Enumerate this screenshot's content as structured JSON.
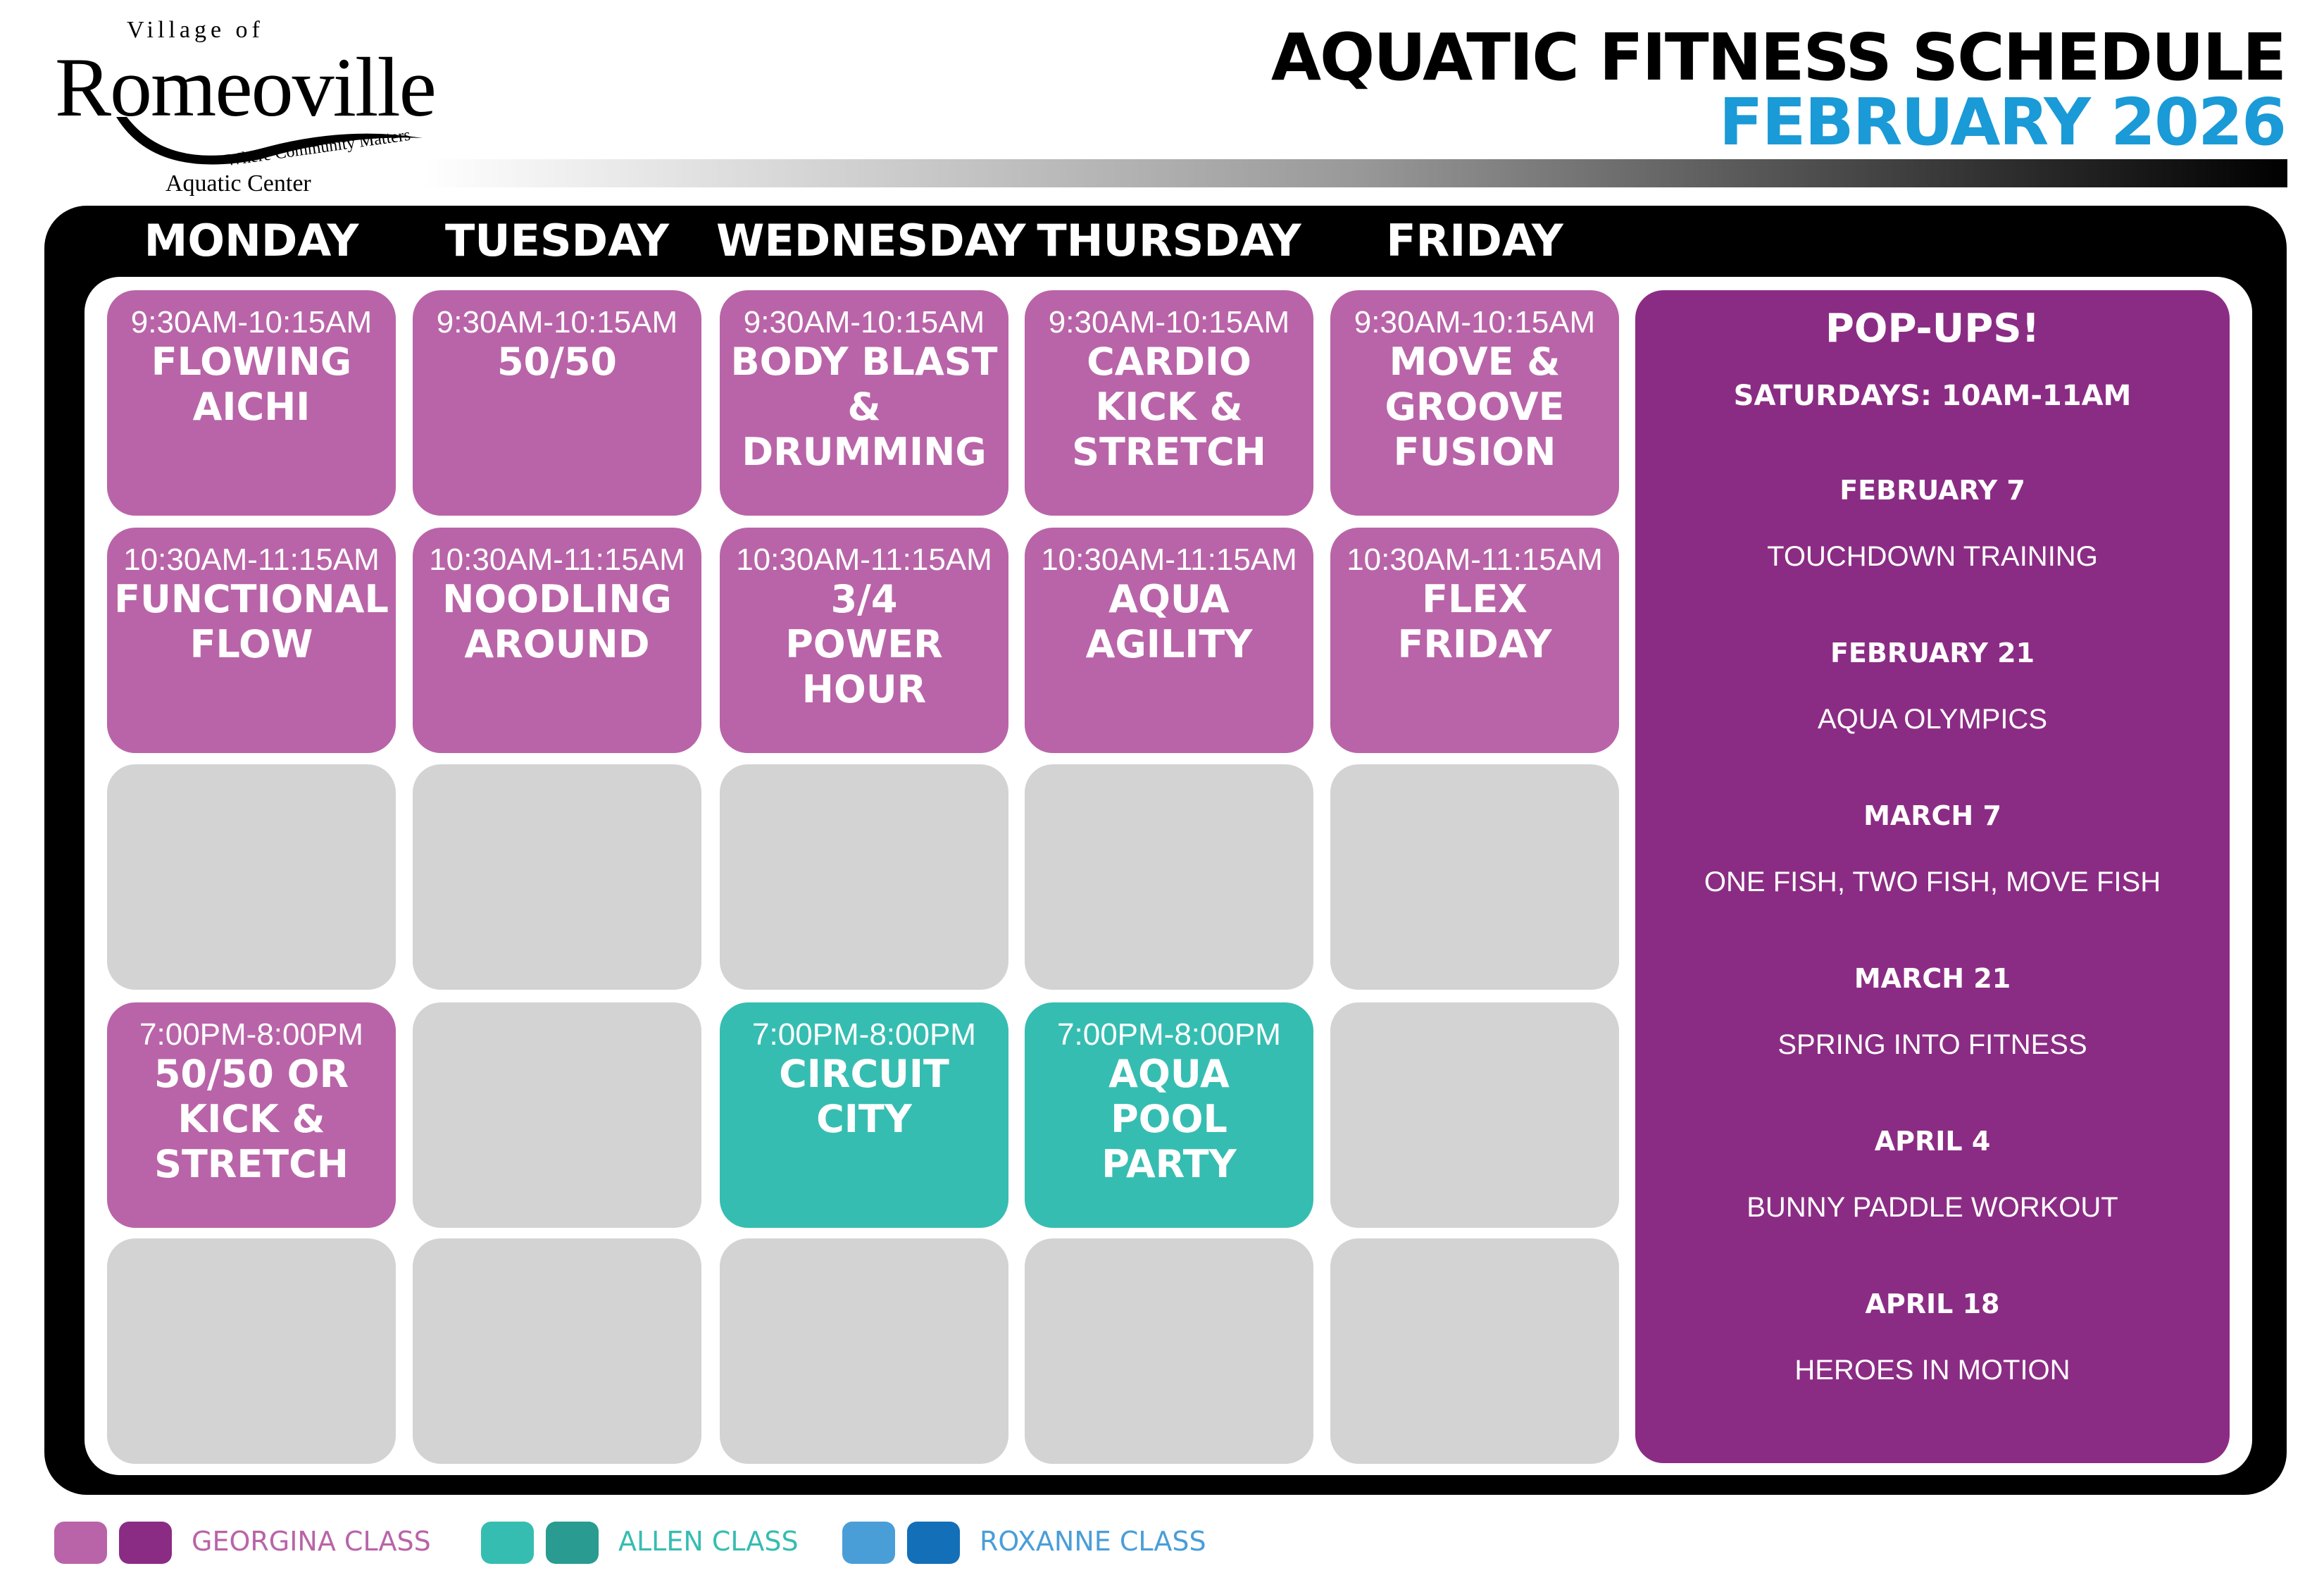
{
  "logo": {
    "village": "Village of",
    "name": "Romeoville",
    "tagline": "Where Community Matters",
    "sub": "Aquatic Center"
  },
  "header": {
    "title": "AQUATIC FITNESS SCHEDULE",
    "month": "FEBRUARY 2026"
  },
  "days": [
    "MONDAY",
    "TUESDAY",
    "WEDNESDAY",
    "THURSDAY",
    "FRIDAY"
  ],
  "grid": [
    [
      {
        "time": "9:30AM-10:15AM",
        "name": "FLOWING\nAICHI",
        "type": "georgina"
      },
      {
        "time": "9:30AM-10:15AM",
        "name": "50/50",
        "type": "georgina"
      },
      {
        "time": "9:30AM-10:15AM",
        "name": "BODY BLAST\n&\nDRUMMING",
        "type": "georgina"
      },
      {
        "time": "9:30AM-10:15AM",
        "name": "CARDIO\nKICK &\nSTRETCH",
        "type": "georgina"
      },
      {
        "time": "9:30AM-10:15AM",
        "name": "MOVE &\nGROOVE\nFUSION",
        "type": "georgina"
      }
    ],
    [
      {
        "time": "10:30AM-11:15AM",
        "name": "FUNCTIONAL\nFLOW",
        "type": "georgina"
      },
      {
        "time": "10:30AM-11:15AM",
        "name": "NOODLING\nAROUND",
        "type": "georgina"
      },
      {
        "time": "10:30AM-11:15AM",
        "name": "3/4\nPOWER\nHOUR",
        "type": "georgina"
      },
      {
        "time": "10:30AM-11:15AM",
        "name": "AQUA\nAGILITY",
        "type": "georgina"
      },
      {
        "time": "10:30AM-11:15AM",
        "name": "FLEX\nFRIDAY",
        "type": "georgina"
      }
    ],
    [
      {},
      {},
      {},
      {},
      {}
    ],
    [
      {
        "time": "7:00PM-8:00PM",
        "name": "50/50 OR\nKICK &\nSTRETCH",
        "type": "georgina"
      },
      {},
      {
        "time": "7:00PM-8:00PM",
        "name": "CIRCUIT\nCITY",
        "type": "allen"
      },
      {
        "time": "7:00PM-8:00PM",
        "name": "AQUA\nPOOL\nPARTY",
        "type": "allen"
      },
      {}
    ],
    [
      {},
      {},
      {},
      {},
      {}
    ]
  ],
  "popups": {
    "title": "POP-UPS!",
    "schedule": "SATURDAYS: 10AM-11AM",
    "events": [
      {
        "date": "FEBRUARY 7",
        "name": "TOUCHDOWN TRAINING"
      },
      {
        "date": "FEBRUARY 21",
        "name": "AQUA OLYMPICS"
      },
      {
        "date": "MARCH 7",
        "name": "ONE FISH, TWO FISH, MOVE FISH"
      },
      {
        "date": "MARCH 21",
        "name": "SPRING INTO FITNESS"
      },
      {
        "date": "APRIL 4",
        "name": "BUNNY PADDLE WORKOUT"
      },
      {
        "date": "APRIL 18",
        "name": "HEROES IN MOTION"
      }
    ]
  },
  "legend": [
    {
      "label": "GEORGINA CLASS",
      "colors": [
        "#b964a8",
        "#8b2c84"
      ]
    },
    {
      "label": "ALLEN CLASS",
      "colors": [
        "#36bdb1",
        "#2a9b90"
      ]
    },
    {
      "label": "ROXANNE CLASS",
      "colors": [
        "#4a9ed8",
        "#136fb8"
      ]
    }
  ]
}
